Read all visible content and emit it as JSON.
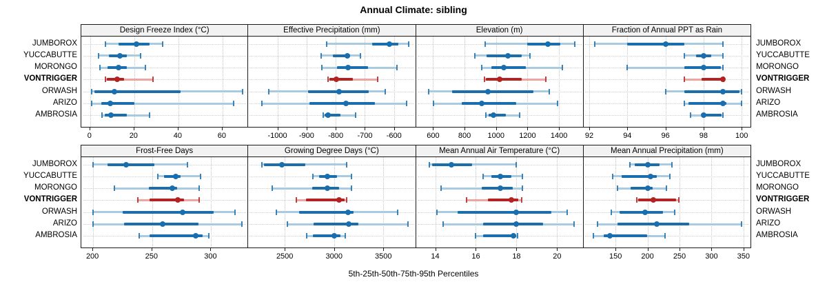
{
  "chart_data": {
    "type": "dotplot",
    "title": "Annual Climate: sibling",
    "caption": "5th-25th-50th-75th-95th Percentiles",
    "percentiles": [
      5,
      25,
      50,
      75,
      95
    ],
    "sites": [
      "JUMBOROX",
      "YUCCABUTTE",
      "MORONGO",
      "VONTRIGGER",
      "ORWASH",
      "ARIZO",
      "AMBROSIA"
    ],
    "highlight_site": "VONTRIGGER",
    "grid": "dotted",
    "legend_position": "none",
    "colors": {
      "series_dark": "#1b6eae",
      "series_light": "#a9cbe2",
      "highlight_dark": "#b42221",
      "highlight_light": "#efa49f",
      "grid": "#c8c8c8",
      "header_bg": "#f2f2f2",
      "border": "#1a1a1a"
    },
    "panels": [
      {
        "title": "Design Freeze Index (°C)",
        "xmin": -4,
        "xmax": 72,
        "ticks": [
          0,
          20,
          40,
          60
        ],
        "values": {
          "JUMBOROX": [
            7,
            13,
            21,
            27,
            33
          ],
          "YUCCABUTTE": [
            3.7,
            8.5,
            13.5,
            16.5,
            23
          ],
          "MORONGO": [
            4.5,
            8,
            13,
            16.5,
            25
          ],
          "VONTRIGGER": [
            7,
            7.5,
            12.3,
            15.5,
            28.5
          ],
          "ORWASH": [
            0.7,
            1.8,
            11,
            41,
            69
          ],
          "ARIZO": [
            0.6,
            5,
            9,
            20,
            65
          ],
          "AMBROSIA": [
            5.5,
            6.5,
            9.5,
            16.5,
            27
          ]
        }
      },
      {
        "title": "Effective Precipitation (mm)",
        "xmin": -1100,
        "xmax": -525,
        "ticks": [
          -1000,
          -900,
          -800,
          -700,
          -600
        ],
        "values": {
          "JUMBOROX": [
            -830,
            -675,
            -615,
            -585,
            -550
          ],
          "YUCCABUTTE": [
            -850,
            -810,
            -760,
            -750,
            -715
          ],
          "MORONGO": [
            -848,
            -795,
            -757,
            -690,
            -590
          ],
          "VONTRIGGER": [
            -827,
            -822,
            -798,
            -741,
            -656
          ],
          "ORWASH": [
            -1029,
            -894,
            -788,
            -686,
            -630
          ],
          "ARIZO": [
            -1053,
            -890,
            -765,
            -666,
            -558
          ],
          "AMBROSIA": [
            -843,
            -838,
            -827,
            -784,
            -733
          ]
        }
      },
      {
        "title": "Elevation (m)",
        "xmin": 491,
        "xmax": 1556,
        "ticks": [
          600,
          800,
          1000,
          1200,
          1400
        ],
        "values": {
          "JUMBOROX": [
            930,
            1200,
            1330,
            1410,
            1500
          ],
          "YUCCABUTTE": [
            865,
            940,
            1075,
            1165,
            1215
          ],
          "MORONGO": [
            910,
            970,
            1048,
            1190,
            1420
          ],
          "VONTRIGGER": [
            928,
            935,
            1025,
            1165,
            1318
          ],
          "ORWASH": [
            570,
            723,
            948,
            1238,
            1340
          ],
          "ARIZO": [
            604,
            780,
            911,
            1130,
            1390
          ],
          "AMBROSIA": [
            934,
            955,
            984,
            1064,
            1150
          ]
        }
      },
      {
        "title": "Fraction of Annual PPT as Rain",
        "xmin": 91.7,
        "xmax": 100.5,
        "ticks": [
          92,
          94,
          96,
          98,
          100
        ],
        "values": {
          "JUMBOROX": [
            92.3,
            94,
            96,
            97,
            99
          ],
          "YUCCABUTTE": [
            97,
            97.6,
            98,
            98.4,
            99
          ],
          "MORONGO": [
            94,
            97,
            98,
            98.9,
            99
          ],
          "VONTRIGGER": [
            97,
            97.9,
            99,
            99,
            99.05
          ],
          "ORWASH": [
            96,
            97,
            99,
            99.9,
            100
          ],
          "ARIZO": [
            97,
            97.2,
            99,
            99.2,
            100
          ],
          "AMBROSIA": [
            97.3,
            97.9,
            98,
            98.95,
            99
          ]
        }
      },
      {
        "title": "Frost-Free Days",
        "xmin": 190,
        "xmax": 332,
        "ticks": [
          200,
          250,
          300
        ],
        "values": {
          "JUMBOROX": [
            200,
            212,
            228,
            252,
            280
          ],
          "YUCCABUTTE": [
            255,
            260,
            270,
            274,
            291
          ],
          "MORONGO": [
            218,
            247,
            267,
            271,
            290
          ],
          "VONTRIGGER": [
            238,
            248,
            272,
            277,
            290
          ],
          "ORWASH": [
            200,
            225,
            276,
            302,
            320
          ],
          "ARIZO": [
            200,
            226,
            259,
            289,
            326
          ],
          "AMBROSIA": [
            239,
            248,
            287,
            293,
            298
          ]
        }
      },
      {
        "title": "Growing Degree Days (°C)",
        "xmin": 2130,
        "xmax": 3830,
        "ticks": [
          2500,
          3000,
          3500
        ],
        "values": {
          "JUMBOROX": [
            2265,
            2290,
            2470,
            2705,
            3130
          ],
          "YUCCABUTTE": [
            2785,
            2845,
            2930,
            3030,
            3180
          ],
          "MORONGO": [
            2370,
            2775,
            2930,
            3050,
            3180
          ],
          "VONTRIGGER": [
            2615,
            2715,
            3050,
            3110,
            3125
          ],
          "ORWASH": [
            2415,
            2645,
            3140,
            3200,
            3645
          ],
          "ARIZO": [
            2530,
            2795,
            3150,
            3250,
            3750
          ],
          "AMBROSIA": [
            2725,
            2785,
            3000,
            3065,
            3115
          ]
        }
      },
      {
        "title": "Mean Annual Air Temperature (°C)",
        "xmin": 13.05,
        "xmax": 21.3,
        "ticks": [
          14,
          16,
          18,
          20
        ],
        "values": {
          "JUMBOROX": [
            13.7,
            13.85,
            14.8,
            15.8,
            18.0
          ],
          "YUCCABUTTE": [
            16.35,
            16.75,
            17.2,
            17.75,
            18.3
          ],
          "MORONGO": [
            14.3,
            16.3,
            17.2,
            17.8,
            18.3
          ],
          "VONTRIGGER": [
            15.55,
            16.6,
            17.75,
            18.1,
            18.25
          ],
          "ORWASH": [
            14.1,
            15.1,
            18.0,
            19.7,
            20.5
          ],
          "ARIZO": [
            14.4,
            16.35,
            18.0,
            19.3,
            20.85
          ],
          "AMBROSIA": [
            16.0,
            16.35,
            17.85,
            18.0,
            18.05
          ]
        }
      },
      {
        "title": "Mean Annual Precipitation (mm)",
        "xmin": 100,
        "xmax": 362,
        "ticks": [
          150,
          200,
          250,
          300,
          350
        ],
        "values": {
          "JUMBOROX": [
            172,
            180,
            200,
            219,
            238
          ],
          "YUCCABUTTE": [
            145,
            160,
            205,
            214,
            235
          ],
          "MORONGO": [
            153,
            174,
            200,
            208,
            230
          ],
          "VONTRIGGER": [
            183,
            185,
            209,
            245,
            249
          ],
          "ORWASH": [
            143,
            156,
            196,
            224,
            242
          ],
          "ARIZO": [
            122,
            153,
            214,
            265,
            347
          ],
          "AMBROSIA": [
            115,
            131,
            141,
            199,
            227
          ]
        }
      }
    ]
  }
}
